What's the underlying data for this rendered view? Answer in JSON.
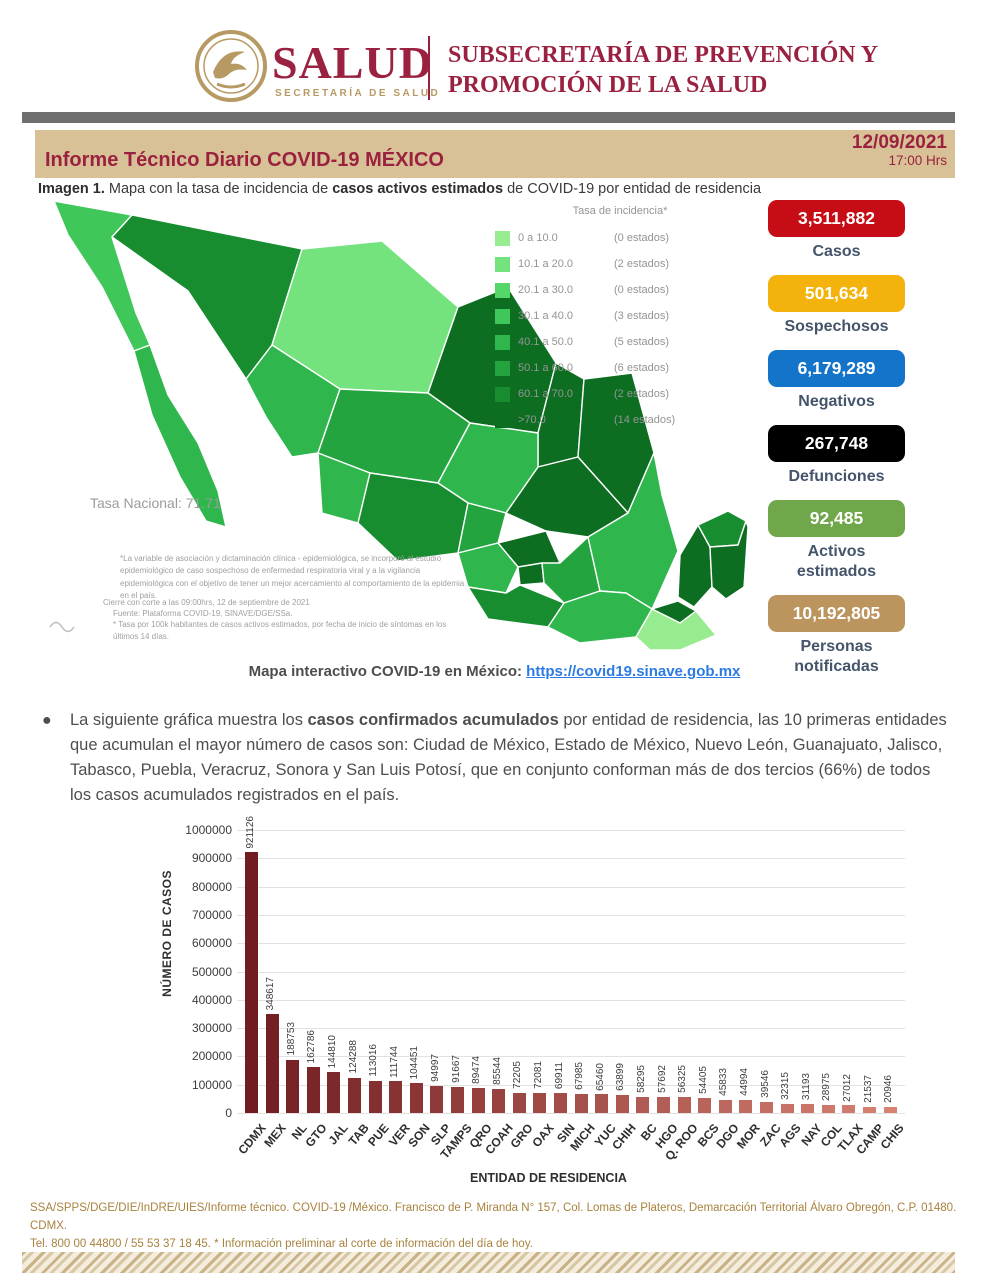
{
  "header": {
    "brand": "SALUD",
    "brand_sub": "SECRETARÍA DE SALUD",
    "org_line1": "SUBSECRETARÍA DE PREVENCIÓN Y",
    "org_line2": "PROMOCIÓN DE LA SALUD"
  },
  "titlebar": {
    "title": "Informe Técnico Diario COVID-19 MÉXICO",
    "date": "12/09/2021",
    "time": "17:00 Hrs"
  },
  "caption": {
    "prefix": "Imagen 1.",
    "text_a": " Mapa con la tasa de incidencia de ",
    "bold": "casos activos estimados",
    "text_b": " de COVID-19 por entidad de residencia"
  },
  "map": {
    "legend_title": "Tasa de incidencia*",
    "legend": [
      {
        "range": "0   a  10.0",
        "count": "(0 estados)",
        "color": "#98EC90"
      },
      {
        "range": "10.1 a 20.0",
        "count": "(2 estados)",
        "color": "#74E37E"
      },
      {
        "range": "20.1 a 30.0",
        "count": "(0 estados)",
        "color": "#55D669"
      },
      {
        "range": "30.1 a 40.0",
        "count": "(3 estados)",
        "color": "#3FC75A"
      },
      {
        "range": "40.1 a 50.0",
        "count": "(5 estados)",
        "color": "#2FB64C"
      },
      {
        "range": "50.1 a 60.0",
        "count": "(6 estados)",
        "color": "#24A43F"
      },
      {
        "range": "60.1 a 70.0",
        "count": "(2 estados)",
        "color": "#188D30"
      },
      {
        "range": ">70.0",
        "count": "(14 estados)",
        "color": "#0D6E22"
      }
    ],
    "national_rate": "Tasa Nacional: 71.71",
    "footnote1": "*La variable de asociación y dictaminación clínica - epidemiológica, se incorporó al estudio epidemiológico de caso sospechoso de enfermedad respiratoria viral y a la vigilancia epidemiológica con el objetivo de tener un mejor acercamiento al comportamiento de la epidemia en el país.",
    "footnote2": "Cierre con corte a las 09:00hrs, 12 de septiembre de 2021",
    "footnote3": "Fuente: Plataforma COVID-19, SINAVE/DGE/SSa.",
    "footnote4": "* Tasa por 100k habitantes de casos activos estimados, por fecha de inicio de síntomas en los últimos 14 días."
  },
  "stats": [
    {
      "value": "3,511,882",
      "label": "Casos",
      "bg": "#C60D15"
    },
    {
      "value": "501,634",
      "label": "Sospechosos",
      "bg": "#F3B30C"
    },
    {
      "value": "6,179,289",
      "label": "Negativos",
      "bg": "#1374C9"
    },
    {
      "value": "267,748",
      "label": "Defunciones",
      "bg": "#000000"
    },
    {
      "value": "92,485",
      "label": "Activos estimados",
      "bg": "#70A74B"
    },
    {
      "value": "10,192,805",
      "label": "Personas notificadas",
      "bg": "#BC955E"
    }
  ],
  "link_line": {
    "label": "Mapa interactivo COVID-19 en México: ",
    "url": "https://covid19.sinave.gob.mx"
  },
  "bullet": {
    "text_a": "La siguiente gráfica muestra los ",
    "bold": "casos confirmados acumulados",
    "text_b": " por entidad de residencia, las 10 primeras entidades que acumulan el mayor número de casos son: Ciudad de México, Estado de México, Nuevo León, Guanajuato, Jalisco, Tabasco, Puebla, Veracruz, Sonora y San Luis Potosí, que en conjunto conforman más de dos tercios (66%) de todos los casos acumulados registrados en el país."
  },
  "chart_data": {
    "type": "bar",
    "title": "",
    "xlabel": "ENTIDAD DE RESIDENCIA",
    "ylabel": "NÚMERO DE CASOS",
    "ylim": [
      0,
      1000000
    ],
    "ytick_step": 100000,
    "grid": true,
    "categories": [
      "CDMX",
      "MEX",
      "NL",
      "GTO",
      "JAL",
      "TAB",
      "PUE",
      "VER",
      "SON",
      "SLP",
      "TAMPS",
      "QRO",
      "COAH",
      "GRO",
      "OAX",
      "SIN",
      "MICH",
      "YUC",
      "CHIH",
      "BC",
      "HGO",
      "Q. ROO",
      "BCS",
      "DGO",
      "MOR",
      "ZAC",
      "AGS",
      "NAY",
      "COL",
      "TLAX",
      "CAMP",
      "CHIS"
    ],
    "values": [
      921126,
      348617,
      188753,
      162786,
      144810,
      124288,
      113016,
      111744,
      104451,
      94997,
      91667,
      89474,
      85544,
      72205,
      72081,
      69911,
      67985,
      65460,
      63899,
      58295,
      57692,
      56325,
      54405,
      45833,
      44994,
      39546,
      32315,
      31193,
      28975,
      27012,
      21537,
      20946
    ],
    "bar_color_start": "#701C20",
    "bar_color_end": "#D78273"
  },
  "footer": {
    "line1": "SSA/SPPS/DGE/DIE/InDRE/UIES/Informe técnico. COVID-19 /México. Francisco de P. Miranda N° 157, Col. Lomas de Plateros, Demarcación Territorial Álvaro Obregón, C.P. 01480. CDMX.",
    "line2": "Tel. 800 00 44800 / 55 53 37 18 45. * Información preliminar al corte de información del día de hoy."
  }
}
